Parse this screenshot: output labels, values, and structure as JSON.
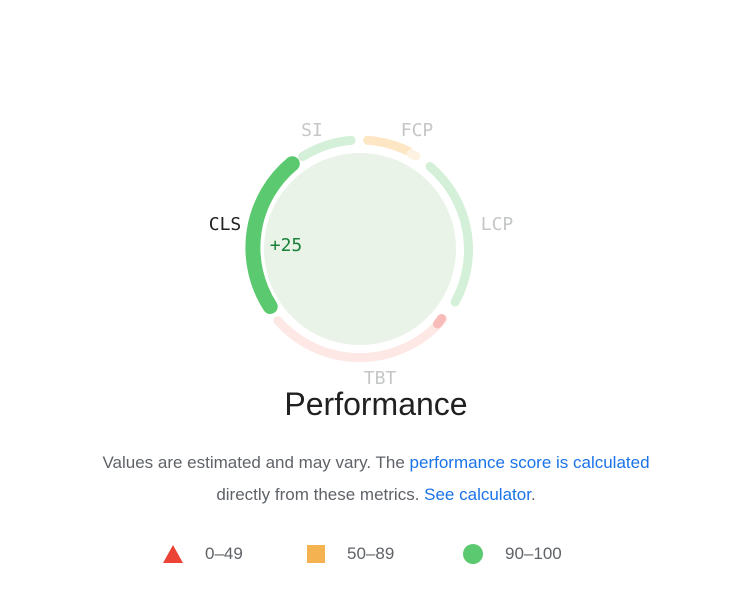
{
  "gauge": {
    "metrics": [
      {
        "key": "si",
        "label": "SI",
        "status": "pass",
        "active": false
      },
      {
        "key": "fcp",
        "label": "FCP",
        "status": "average",
        "active": false
      },
      {
        "key": "lcp",
        "label": "LCP",
        "status": "pass",
        "active": false
      },
      {
        "key": "tbt",
        "label": "TBT",
        "status": "fail",
        "active": false
      },
      {
        "key": "cls",
        "label": "CLS",
        "status": "pass",
        "active": true
      }
    ],
    "highlight_value": "+25"
  },
  "title": "Performance",
  "description": {
    "text1": "Values are estimated and may vary. The ",
    "link1": "performance score is calculated",
    "text2": " directly from these metrics. ",
    "link2": "See calculator",
    "text3": "."
  },
  "legend": [
    {
      "range": "0–49",
      "shape": "triangle",
      "color": "#eb4335"
    },
    {
      "range": "50–89",
      "shape": "square",
      "color": "#f4b350"
    },
    {
      "range": "90–100",
      "shape": "circle",
      "color": "#5ac96f"
    }
  ],
  "colors": {
    "pass": "#5ac96f",
    "pass_faded": "#d5f0d8",
    "average_faded": "#fde6c4",
    "fail_faded": "#fde8e6",
    "fail_tip": "#f7bcb8",
    "inner_fill": "#e9f3e7",
    "link": "#1a73e8"
  }
}
